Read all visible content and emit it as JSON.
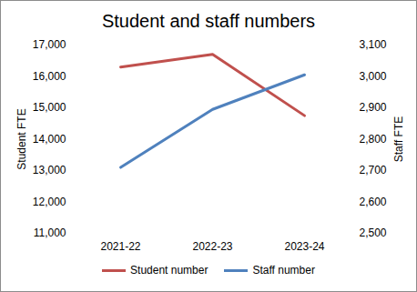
{
  "chart_data": {
    "type": "line",
    "title": "Student and staff numbers",
    "categories": [
      "2021-22",
      "2022-23",
      "2023-24"
    ],
    "ylabel": "Student FTE",
    "y2label": "Staff FTE",
    "series": [
      {
        "name": "Student number",
        "color": "#c0504d",
        "values": [
          16300,
          16700,
          14750
        ]
      },
      {
        "name": "Staff number",
        "color": "#4f81bd",
        "values": [
          2710,
          2895,
          3005
        ],
        "axis": "y2"
      }
    ],
    "ylim": [
      11000,
      17000
    ],
    "yticks": [
      {
        "value": 11000,
        "label": "11,000"
      },
      {
        "value": 12000,
        "label": "12,000"
      },
      {
        "value": 13000,
        "label": "13,000"
      },
      {
        "value": 14000,
        "label": "14,000"
      },
      {
        "value": 15000,
        "label": "15,000"
      },
      {
        "value": 16000,
        "label": "16,000"
      },
      {
        "value": 17000,
        "label": "17,000"
      }
    ],
    "y2lim": [
      2500,
      3100
    ],
    "y2ticks": [
      {
        "value": 2500,
        "label": "2,500"
      },
      {
        "value": 2600,
        "label": "2,600"
      },
      {
        "value": 2700,
        "label": "2,700"
      },
      {
        "value": 2800,
        "label": "2,800"
      },
      {
        "value": 2900,
        "label": "2,900"
      },
      {
        "value": 3000,
        "label": "3,000"
      },
      {
        "value": 3100,
        "label": "3,100"
      }
    ],
    "grid": false,
    "legend": "bottom"
  }
}
